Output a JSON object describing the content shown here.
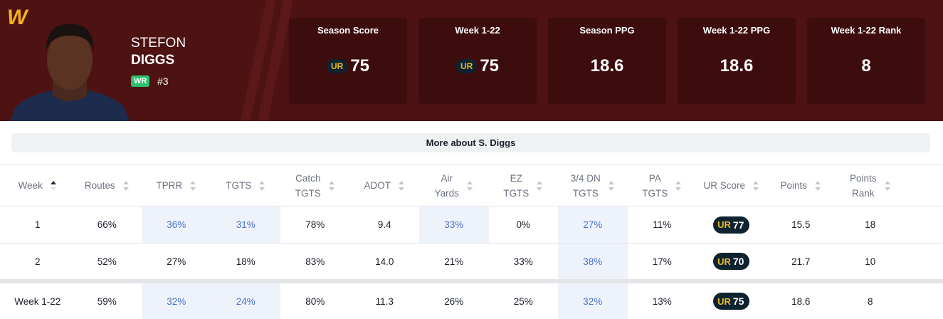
{
  "header": {
    "logo": "W",
    "first_name": "STEFON",
    "last_name": "DIGGS",
    "position": "WR",
    "number": "#3"
  },
  "badge_logo": "UR",
  "stat_cards": [
    {
      "label": "Season Score",
      "value": "75",
      "badge": true
    },
    {
      "label": "Week 1-22",
      "value": "75",
      "badge": true
    },
    {
      "label": "Season PPG",
      "value": "18.6",
      "badge": false
    },
    {
      "label": "Week 1-22 PPG",
      "value": "18.6",
      "badge": false
    },
    {
      "label": "Week 1-22 Rank",
      "value": "8",
      "badge": false
    }
  ],
  "more_button": "More about S. Diggs",
  "table": {
    "columns": [
      [
        "Week"
      ],
      [
        "Routes"
      ],
      [
        "TPRR"
      ],
      [
        "TGTS"
      ],
      [
        "Catch",
        "TGTS"
      ],
      [
        "ADOT"
      ],
      [
        "Air",
        "Yards"
      ],
      [
        "EZ",
        "TGTS"
      ],
      [
        "3/4 DN",
        "TGTS"
      ],
      [
        "PA",
        "TGTS"
      ],
      [
        "UR Score"
      ],
      [
        "Points"
      ],
      [
        "Points",
        "Rank"
      ]
    ],
    "sorted_column": 0,
    "ur_score_column": 10,
    "rows": [
      {
        "cells": [
          "1",
          "66%",
          "36%",
          "31%",
          "78%",
          "9.4",
          "33%",
          "0%",
          "27%",
          "11%",
          "77",
          "15.5",
          "18"
        ],
        "highlight": [
          2,
          3,
          6,
          8
        ]
      },
      {
        "cells": [
          "2",
          "52%",
          "27%",
          "18%",
          "83%",
          "14.0",
          "21%",
          "33%",
          "38%",
          "17%",
          "70",
          "21.7",
          "10"
        ],
        "highlight": [
          8
        ]
      },
      {
        "cells": [
          "Week 1-22",
          "59%",
          "32%",
          "24%",
          "80%",
          "11.3",
          "26%",
          "25%",
          "32%",
          "13%",
          "75",
          "18.6",
          "8"
        ],
        "highlight": [
          2,
          3,
          8
        ]
      }
    ]
  }
}
